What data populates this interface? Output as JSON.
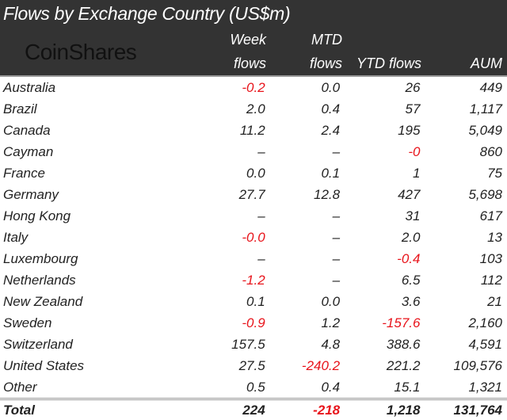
{
  "title": "Flows by Exchange Country (US$m)",
  "logo_text": "CoinShares",
  "columns": {
    "week": [
      "Week",
      "flows"
    ],
    "mtd": [
      "MTD",
      "flows"
    ],
    "ytd": "YTD flows",
    "aum": "AUM"
  },
  "colors": {
    "header_bg": "#333333",
    "negative": "#e8141b"
  },
  "rows": [
    {
      "country": "Australia",
      "week": "-0.2",
      "mtd": "0.0",
      "ytd": "26",
      "aum": "449"
    },
    {
      "country": "Brazil",
      "week": "2.0",
      "mtd": "0.4",
      "ytd": "57",
      "aum": "1,117"
    },
    {
      "country": "Canada",
      "week": "11.2",
      "mtd": "2.4",
      "ytd": "195",
      "aum": "5,049"
    },
    {
      "country": "Cayman",
      "week": "–",
      "mtd": "–",
      "ytd": "-0",
      "aum": "860"
    },
    {
      "country": "France",
      "week": "0.0",
      "mtd": "0.1",
      "ytd": "1",
      "aum": "75"
    },
    {
      "country": "Germany",
      "week": "27.7",
      "mtd": "12.8",
      "ytd": "427",
      "aum": "5,698"
    },
    {
      "country": "Hong Kong",
      "week": "–",
      "mtd": "–",
      "ytd": "31",
      "aum": "617"
    },
    {
      "country": "Italy",
      "week": "-0.0",
      "mtd": "–",
      "ytd": "2.0",
      "aum": "13"
    },
    {
      "country": "Luxembourg",
      "week": "–",
      "mtd": "–",
      "ytd": "-0.4",
      "aum": "103"
    },
    {
      "country": "Netherlands",
      "week": "-1.2",
      "mtd": "–",
      "ytd": "6.5",
      "aum": "112"
    },
    {
      "country": "New Zealand",
      "week": "0.1",
      "mtd": "0.0",
      "ytd": "3.6",
      "aum": "21"
    },
    {
      "country": "Sweden",
      "week": "-0.9",
      "mtd": "1.2",
      "ytd": "-157.6",
      "aum": "2,160"
    },
    {
      "country": "Switzerland",
      "week": "157.5",
      "mtd": "4.8",
      "ytd": "388.6",
      "aum": "4,591"
    },
    {
      "country": "United States",
      "week": "27.5",
      "mtd": "-240.2",
      "ytd": "221.2",
      "aum": "109,576"
    },
    {
      "country": "Other",
      "week": "0.5",
      "mtd": "0.4",
      "ytd": "15.1",
      "aum": "1,321"
    }
  ],
  "total": {
    "country": "Total",
    "week": "224",
    "mtd": "-218",
    "ytd": "1,218",
    "aum": "131,764"
  }
}
